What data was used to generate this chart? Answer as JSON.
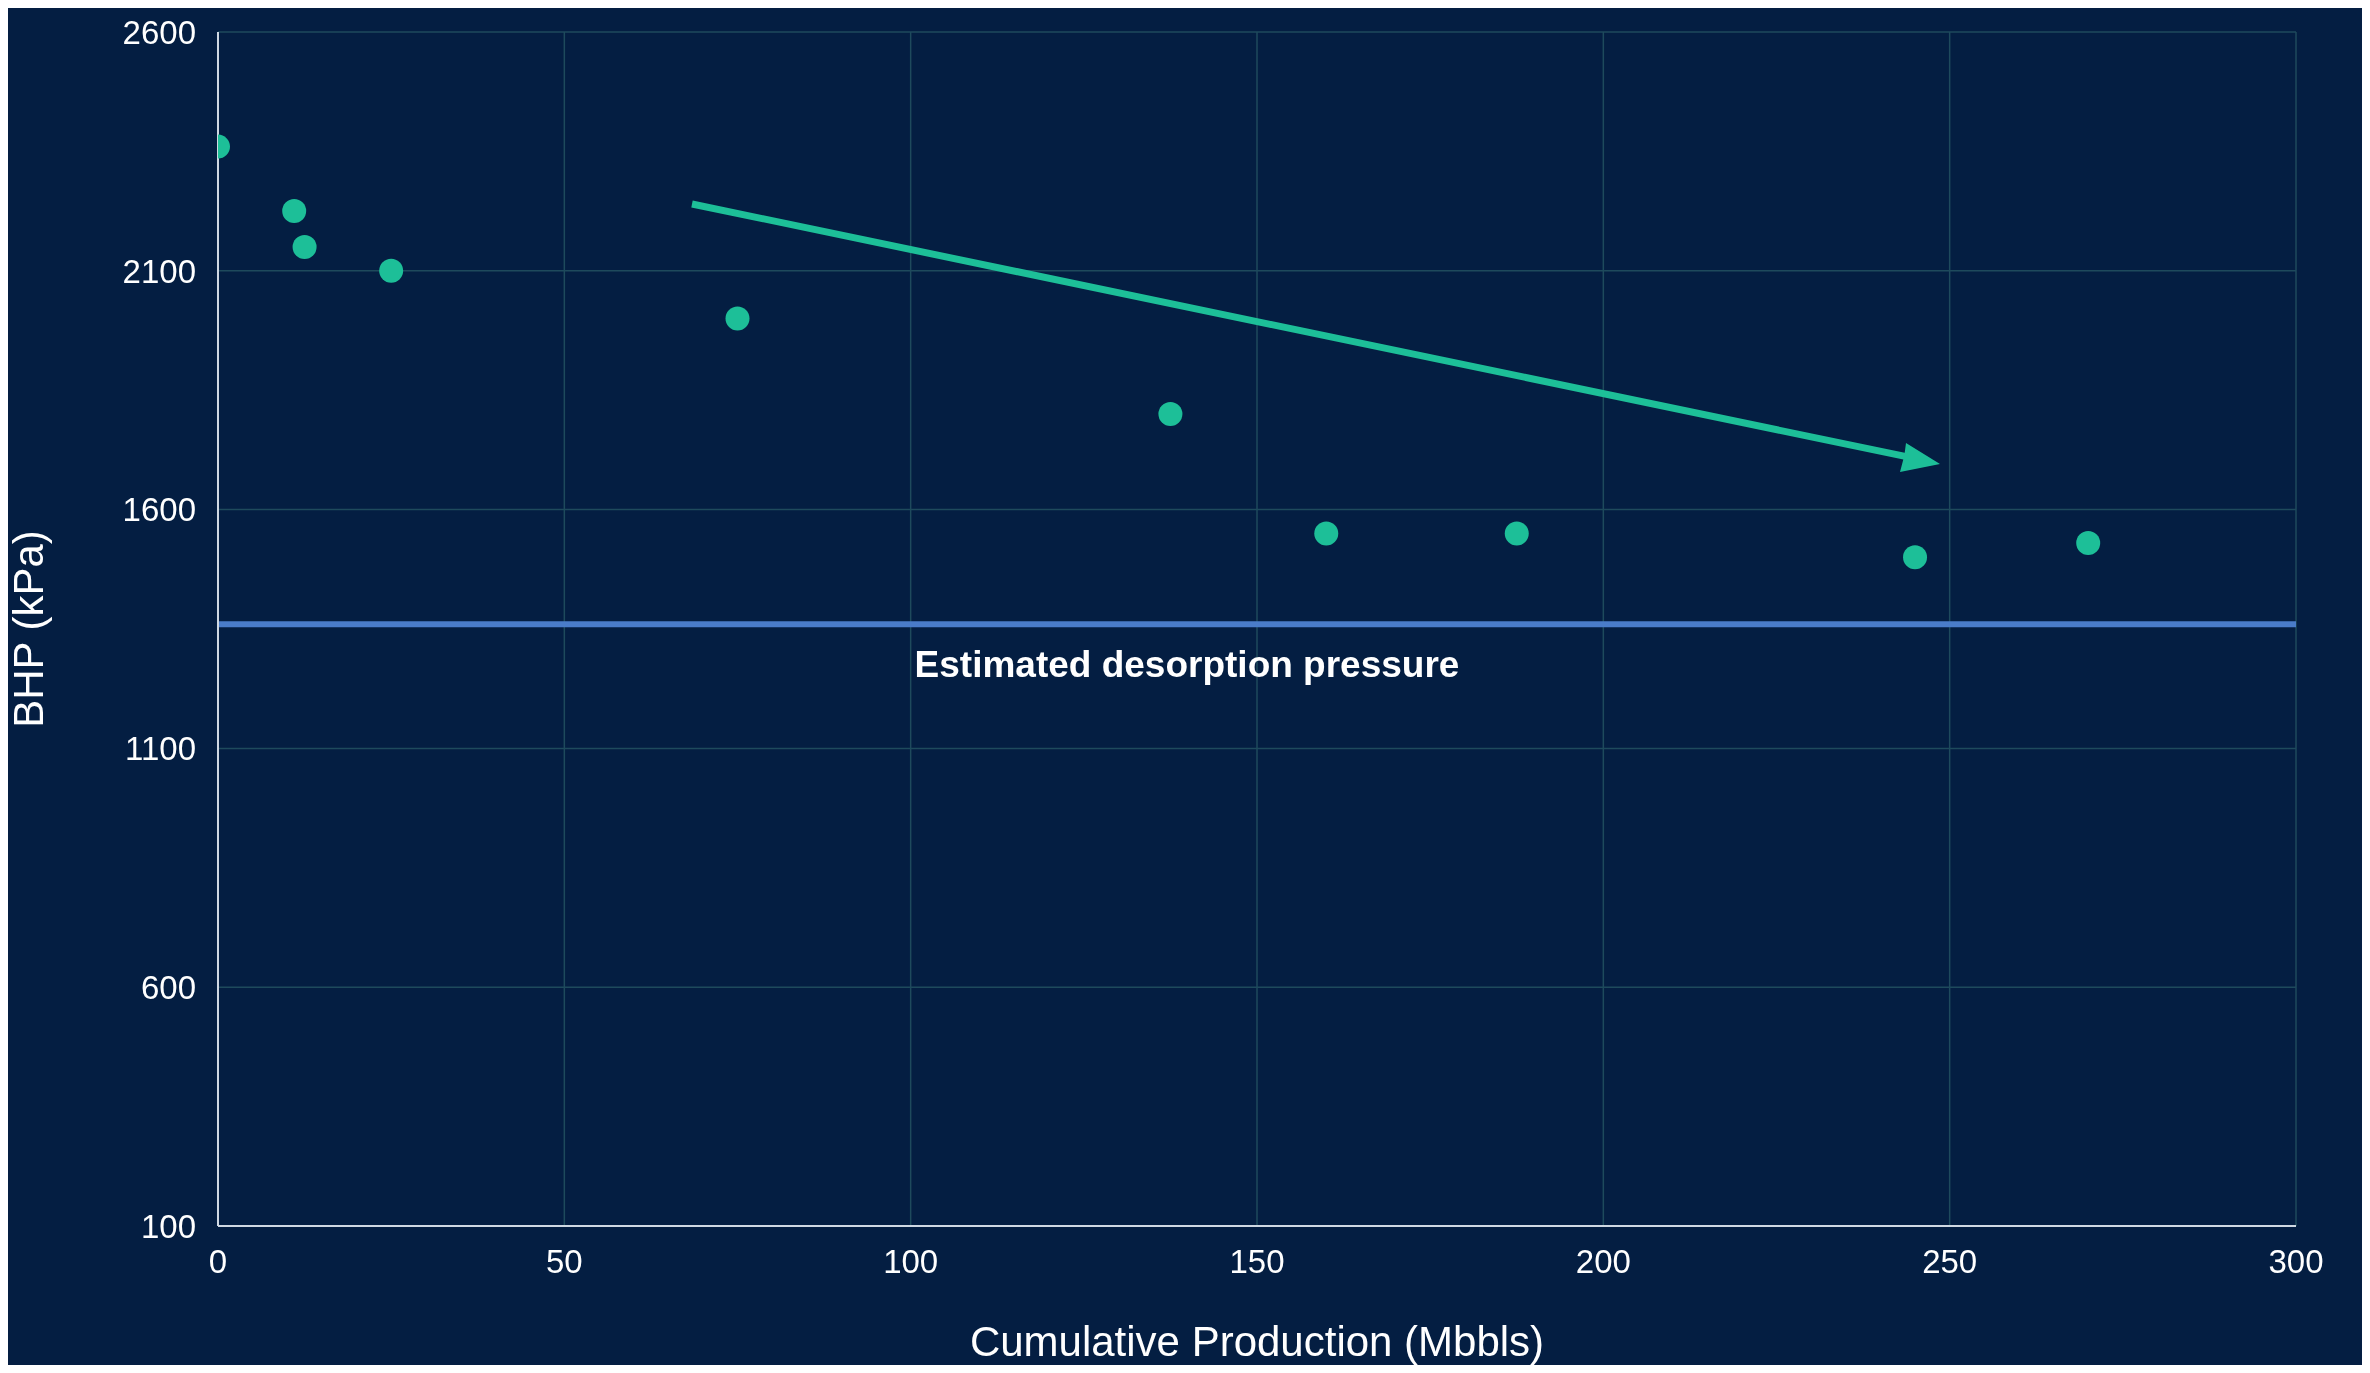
{
  "chart_data": {
    "type": "scatter",
    "xlabel": "Cumulative Production (Mbbls)",
    "ylabel": "BHP (kPa)",
    "x": [
      0,
      11,
      12.5,
      25,
      75,
      137.5,
      160,
      187.5,
      245,
      270
    ],
    "series": [
      {
        "color": "#1dbf98",
        "values": [
          2360,
          2225,
          2150,
          2100,
          2000,
          1800,
          1550,
          1550,
          1500,
          1530
        ]
      }
    ],
    "xlim": [
      0,
      300
    ],
    "xticks": [
      0,
      50,
      100,
      150,
      200,
      250,
      300
    ],
    "ylim": [
      100,
      2600
    ],
    "yticks": [
      100,
      600,
      1100,
      1600,
      2100,
      2600
    ],
    "ref_lines": [
      {
        "axis": "y",
        "value": 1360,
        "label": "Estimated desorption pressure",
        "color": "#4a7cc9"
      }
    ],
    "grid": true,
    "marker": "circle"
  }
}
